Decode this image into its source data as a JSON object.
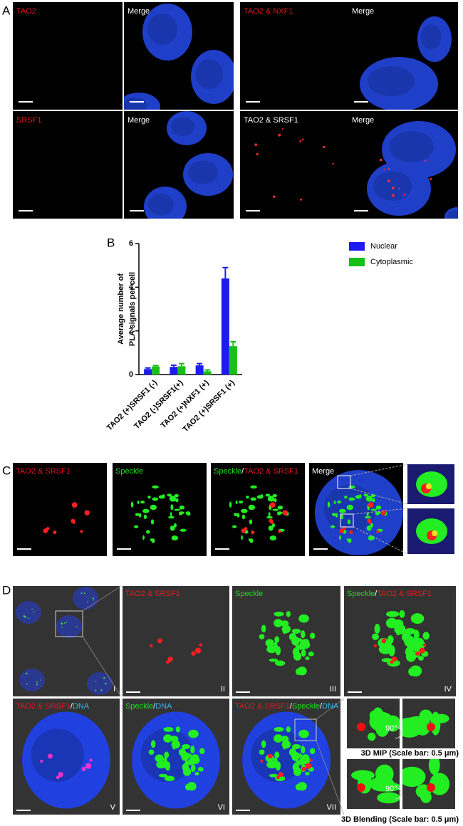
{
  "panel_a": {
    "letter": "A",
    "tiles": [
      [
        {
          "text": "TAO2",
          "color": "#e01b1b"
        }
      ],
      [
        {
          "text": "Merge",
          "color": "#ffffff"
        }
      ],
      [
        {
          "text": "TAO2 & NXF1",
          "color": "#e01b1b"
        }
      ],
      [
        {
          "text": "Merge",
          "color": "#ffffff"
        }
      ],
      [
        {
          "text": "SRSF1",
          "color": "#e01b1b"
        }
      ],
      [
        {
          "text": "Merge",
          "color": "#ffffff"
        }
      ],
      [
        {
          "text": "TAO2 & SRSF1",
          "color": "#ffffff"
        }
      ],
      [
        {
          "text": "Merge",
          "color": "#ffffff"
        }
      ]
    ]
  },
  "chart_data": {
    "type": "bar",
    "panel_label": "B",
    "y_label": [
      "Average number of",
      "PLA signals per cell"
    ],
    "categories": [
      "TAO2 (+)SRSF1 (-)",
      "TAO2 (-)SRSF1(+)",
      "TAO2 (+)NXF1 (+)",
      "TAO2 (+)SRSF1 (+)"
    ],
    "series": [
      {
        "name": "Nuclear",
        "color": "#1c1cf0",
        "values": [
          0.25,
          0.35,
          0.42,
          4.4
        ],
        "errors": [
          0.05,
          0.08,
          0.08,
          0.5
        ]
      },
      {
        "name": "Cytoplasmic",
        "color": "#16c016",
        "values": [
          0.37,
          0.38,
          0.15,
          1.3
        ],
        "errors": [
          0.04,
          0.12,
          0.06,
          0.2
        ]
      }
    ],
    "ylim": [
      0,
      6
    ],
    "yticks": [
      0,
      2,
      4,
      6
    ],
    "legend": "top-right"
  },
  "panel_c": {
    "letter": "C",
    "tiles": [
      [
        {
          "text": "TAO2 & SRSF1",
          "color": "#e01b1b"
        }
      ],
      [
        {
          "text": "Speckle",
          "color": "#22dd22"
        }
      ],
      [
        {
          "text": "Speckle",
          "color": "#22dd22"
        },
        {
          "text": "/",
          "color": "#ffffff"
        },
        {
          "text": "TAO2 & SRSF1",
          "color": "#e01b1b"
        }
      ],
      [
        {
          "text": "Merge",
          "color": "#ffffff"
        }
      ]
    ]
  },
  "panel_d": {
    "letter": "D",
    "tiles": [
      {
        "parts": [],
        "numeral": "I"
      },
      {
        "parts": [
          {
            "text": "TAO2 & SRSF1",
            "color": "#e01b1b"
          }
        ],
        "numeral": "II"
      },
      {
        "parts": [
          {
            "text": "Speckle",
            "color": "#22dd22"
          }
        ],
        "numeral": "III"
      },
      {
        "parts": [
          {
            "text": "Speckle",
            "color": "#22dd22"
          },
          {
            "text": "/",
            "color": "#ffffff"
          },
          {
            "text": "TAO2 & SRSF1",
            "color": "#e01b1b"
          }
        ],
        "numeral": "IV"
      },
      {
        "parts": [
          {
            "text": "TAO2 & SRSF1",
            "color": "#e01b1b"
          },
          {
            "text": "/",
            "color": "#ffffff"
          },
          {
            "text": "DNA",
            "color": "#33bbee"
          }
        ],
        "numeral": "V"
      },
      {
        "parts": [
          {
            "text": "Speckle",
            "color": "#22dd22"
          },
          {
            "text": "/",
            "color": "#ffffff"
          },
          {
            "text": "DNA",
            "color": "#33bbee"
          }
        ],
        "numeral": "VI"
      },
      {
        "parts": [
          {
            "text": "TAO2 & SRSF1",
            "color": "#e01b1b"
          },
          {
            "text": "/",
            "color": "#ffffff"
          },
          {
            "text": "Speckle",
            "color": "#22dd22"
          },
          {
            "text": "/",
            "color": "#ffffff"
          },
          {
            "text": "DNA",
            "color": "#33bbee"
          }
        ],
        "numeral": "VII"
      }
    ],
    "rotation_label": "90°",
    "captions": [
      "3D MIP (Scale bar: 0.5 μm)",
      "3D Blending (Scale bar: 0.5 μm)"
    ]
  }
}
